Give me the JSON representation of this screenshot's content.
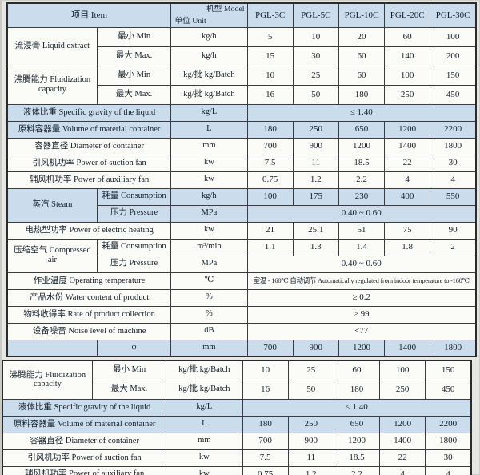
{
  "colors": {
    "header_bg": "#cbdcec",
    "shade_bg": "#cbdcec",
    "row_bg": "#fbfbf7",
    "border": "#3c3c40",
    "text": "#15202d"
  },
  "header": {
    "item": "项目 Item",
    "model": "机型 Model",
    "unit": "单位 Unit",
    "models": [
      "PGL-3C",
      "PGL-5C",
      "PGL-10C",
      "PGL-20C",
      "PGL-30C"
    ]
  },
  "top_rows": [
    {
      "kind": "group",
      "group": "流浸膏 Liquid extract",
      "sub": "最小 Min",
      "unit": "kg/h",
      "values": [
        "5",
        "10",
        "20",
        "60",
        "100"
      ],
      "shade": false,
      "tall": true
    },
    {
      "kind": "group2",
      "sub": "最大 Max.",
      "unit": "kg/h",
      "values": [
        "15",
        "30",
        "60",
        "140",
        "200"
      ],
      "shade": false,
      "tall": true
    },
    {
      "kind": "group",
      "group": "沸腾能力 Fluidization capacity",
      "sub": "最小 Min",
      "unit": "kg/批 kg/Batch",
      "values": [
        "10",
        "25",
        "60",
        "100",
        "150"
      ],
      "shade": false,
      "tall": true
    },
    {
      "kind": "group2",
      "sub": "最大 Max.",
      "unit": "kg/批 kg/Batch",
      "values": [
        "16",
        "50",
        "180",
        "250",
        "450"
      ],
      "shade": false,
      "tall": true
    },
    {
      "kind": "span",
      "label": "液体比重 Specific gravity of the liquid",
      "unit": "kg/L",
      "value": "≤ 1.40",
      "shade": true
    },
    {
      "kind": "plain",
      "label": "原料容器量 Volume of material container",
      "unit": "L",
      "values": [
        "180",
        "250",
        "650",
        "1200",
        "2200"
      ],
      "shade": true
    },
    {
      "kind": "plain",
      "label": "容器直径 Diameter of container",
      "unit": "mm",
      "values": [
        "700",
        "900",
        "1200",
        "1400",
        "1800"
      ],
      "shade": false
    },
    {
      "kind": "plain",
      "label": "引风机功率 Power of suction fan",
      "unit": "kw",
      "values": [
        "7.5",
        "11",
        "18.5",
        "22",
        "30"
      ],
      "shade": false
    },
    {
      "kind": "plain",
      "label": "辅风机功率 Power of auxiliary fan",
      "unit": "kw",
      "values": [
        "0.75",
        "1.2",
        "2.2",
        "4",
        "4"
      ],
      "shade": false
    },
    {
      "kind": "group",
      "group": "蒸汽 Steam",
      "sub": "耗量 Consumption",
      "unit": "kg/h",
      "values": [
        "100",
        "175",
        "230",
        "400",
        "550"
      ],
      "shade": true
    },
    {
      "kind": "group2",
      "sub": "压力 Pressure",
      "unit": "MPa",
      "value": "0.40 ~ 0.60",
      "shade": true
    },
    {
      "kind": "plain",
      "label": "电热型功率 Power of electric heating",
      "unit": "kw",
      "values": [
        "21",
        "25.1",
        "51",
        "75",
        "90"
      ],
      "shade": false
    },
    {
      "kind": "group",
      "group": "压缩空气 Compressed air",
      "sub": "耗量 Consumption",
      "unit": "m³/min",
      "values": [
        "1.1",
        "1.3",
        "1.4",
        "1.8",
        "2"
      ],
      "shade": false
    },
    {
      "kind": "group2",
      "sub": "压力 Pressure",
      "unit": "MPa",
      "value": "0.40 ~ 0.60",
      "shade": false
    },
    {
      "kind": "span",
      "label": "作业温度 Operating temperature",
      "unit": "℃",
      "value": "室温 - 160℃ 自动调节 Automatically regulated from indoor temperature to -160℃",
      "shade": false,
      "small": true
    },
    {
      "kind": "span",
      "label": "产品水份 Water content of product",
      "unit": "%",
      "value": "≥ 0.2",
      "shade": false
    },
    {
      "kind": "span",
      "label": "物料收得率 Rate of product collection",
      "unit": "%",
      "value": "≥ 99",
      "shade": false
    },
    {
      "kind": "span",
      "label": "设备噪音 Noise level of machine",
      "unit": "dB",
      "value": "<77",
      "shade": false
    },
    {
      "kind": "phi",
      "sub": "φ",
      "unit": "mm",
      "values": [
        "700",
        "900",
        "1200",
        "1400",
        "1800"
      ],
      "shade": true
    }
  ],
  "bottom_rows": [
    {
      "kind": "group",
      "group": "沸腾能力 Fluidization capacity",
      "sub": "最小 Min",
      "unit": "kg/批 kg/Batch",
      "values": [
        "10",
        "25",
        "60",
        "100",
        "150"
      ],
      "shade": false,
      "tall": true
    },
    {
      "kind": "group2",
      "sub": "最大 Max.",
      "unit": "kg/批 kg/Batch",
      "values": [
        "16",
        "50",
        "180",
        "250",
        "450"
      ],
      "shade": false,
      "tall": true
    },
    {
      "kind": "span",
      "label": "液体比重 Specific gravity of the liquid",
      "unit": "kg/L",
      "value": "≤ 1.40",
      "shade": true
    },
    {
      "kind": "plain",
      "label": "原料容器量 Volume of material container",
      "unit": "L",
      "values": [
        "180",
        "250",
        "650",
        "1200",
        "2200"
      ],
      "shade": true
    },
    {
      "kind": "plain",
      "label": "容器直径 Diameter of container",
      "unit": "mm",
      "values": [
        "700",
        "900",
        "1200",
        "1400",
        "1800"
      ],
      "shade": false
    },
    {
      "kind": "plain",
      "label": "引风机功率 Power of suction fan",
      "unit": "kw",
      "values": [
        "7.5",
        "11",
        "18.5",
        "22",
        "30"
      ],
      "shade": false
    },
    {
      "kind": "plain",
      "label": "辅风机功率 Power of auxiliary fan",
      "unit": "kw",
      "values": [
        "0.75",
        "1.2",
        "2.2",
        "4",
        "4"
      ],
      "shade": false
    }
  ]
}
